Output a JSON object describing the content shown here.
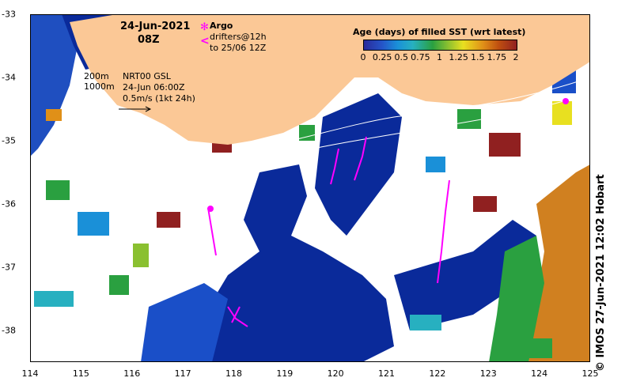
{
  "map": {
    "date": "24-Jun-2021",
    "time": "08Z",
    "argo_label": "Argo",
    "drifters_label": "drifters@12h",
    "drifters_range": "to 25/06 12Z",
    "isobath_200": "200m",
    "isobath_1000": "1000m",
    "model_name": "NRT00 GSL",
    "model_time": "24-Jun 06:00Z",
    "velocity_scale": "0.5m/s (1kt 24h)",
    "credit": "© IMOS 27-Jun-2021 12:02 Hobart",
    "colors": {
      "land": "#fbc896",
      "deep_water": "#0a2a9a",
      "argo": "#ff00ff",
      "drifters": "#ff00ff"
    }
  },
  "legend": {
    "title": "Age (days) of filled SST (wrt latest)",
    "ticks": [
      "0",
      "0.25",
      "0.5",
      "0.75",
      "1",
      "1.25",
      "1.5",
      "1.75",
      "2"
    ],
    "tick_values": [
      0,
      0.25,
      0.5,
      0.75,
      1,
      1.25,
      1.5,
      1.75,
      2
    ]
  },
  "axes": {
    "x_ticks": [
      "114",
      "115",
      "116",
      "117",
      "118",
      "119",
      "120",
      "121",
      "122",
      "123",
      "124",
      "125"
    ],
    "y_ticks": [
      "-33",
      "-34",
      "-35",
      "-36",
      "-37",
      "-38"
    ],
    "lon_range": [
      114,
      125
    ],
    "lat_range": [
      -38.5,
      -33
    ]
  }
}
